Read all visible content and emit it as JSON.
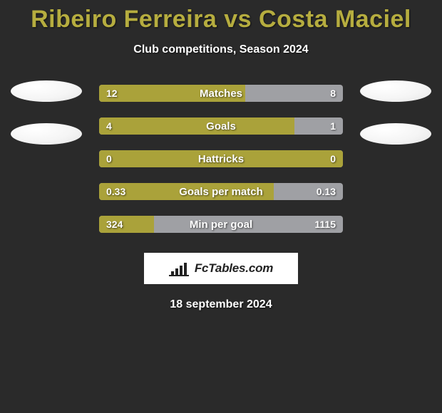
{
  "title_left": "Ribeiro Ferreira",
  "title_vs": " vs ",
  "title_right": "Costa Maciel",
  "subtitle": "Club competitions, Season 2024",
  "colors": {
    "left_fill": "#aaa23a",
    "right_fill": "#9fa0a4",
    "title_accent": "#b6ad3f",
    "background": "#2a2a2a"
  },
  "bars": [
    {
      "label": "Matches",
      "left": "12",
      "right": "8",
      "left_pct": 60.0
    },
    {
      "label": "Goals",
      "left": "4",
      "right": "1",
      "left_pct": 80.0
    },
    {
      "label": "Hattricks",
      "left": "0",
      "right": "0",
      "left_pct": 100.0
    },
    {
      "label": "Goals per match",
      "left": "0.33",
      "right": "0.13",
      "left_pct": 71.7
    },
    {
      "label": "Min per goal",
      "left": "324",
      "right": "1115",
      "left_pct": 22.5
    }
  ],
  "brand": "FcTables.com",
  "date": "18 september 2024"
}
